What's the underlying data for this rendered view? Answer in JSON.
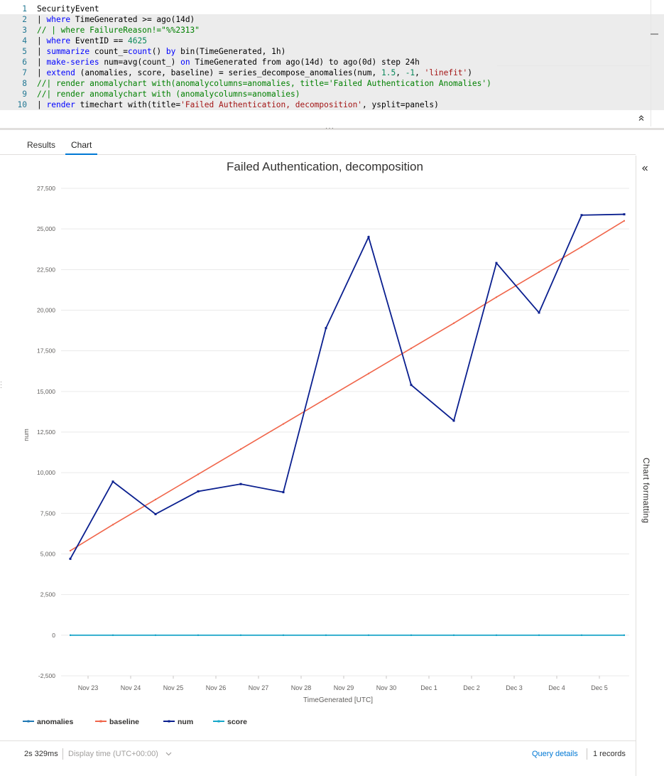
{
  "editor": {
    "lines": [
      {
        "num": "1",
        "tokens": [
          {
            "t": "SecurityEvent",
            "c": "plain"
          }
        ]
      },
      {
        "num": "2",
        "tokens": [
          {
            "t": "| ",
            "c": "plain"
          },
          {
            "t": "where",
            "c": "kw"
          },
          {
            "t": " TimeGenerated >= ago(14d)",
            "c": "plain"
          }
        ]
      },
      {
        "num": "3",
        "tokens": [
          {
            "t": "// | where FailureReason!=\"%%2313\"",
            "c": "cmt"
          }
        ]
      },
      {
        "num": "4",
        "tokens": [
          {
            "t": "| ",
            "c": "plain"
          },
          {
            "t": "where",
            "c": "kw"
          },
          {
            "t": " EventID == ",
            "c": "plain"
          },
          {
            "t": "4625",
            "c": "num"
          }
        ]
      },
      {
        "num": "5",
        "tokens": [
          {
            "t": "| ",
            "c": "plain"
          },
          {
            "t": "summarize",
            "c": "kw"
          },
          {
            "t": " count_=",
            "c": "plain"
          },
          {
            "t": "count",
            "c": "kw"
          },
          {
            "t": "() ",
            "c": "plain"
          },
          {
            "t": "by",
            "c": "kw"
          },
          {
            "t": " bin(TimeGenerated, 1h)",
            "c": "plain"
          }
        ]
      },
      {
        "num": "6",
        "tokens": [
          {
            "t": "| ",
            "c": "plain"
          },
          {
            "t": "make-series",
            "c": "kw"
          },
          {
            "t": " num=avg(count_) ",
            "c": "plain"
          },
          {
            "t": "on",
            "c": "kw"
          },
          {
            "t": " TimeGenerated from ago(14d) to ago(0d) step 24h",
            "c": "plain"
          }
        ]
      },
      {
        "num": "7",
        "tokens": [
          {
            "t": "| ",
            "c": "plain"
          },
          {
            "t": "extend",
            "c": "kw"
          },
          {
            "t": " (anomalies, score, baseline) = series_decompose_anomalies(num, ",
            "c": "plain"
          },
          {
            "t": "1.5",
            "c": "num"
          },
          {
            "t": ", ",
            "c": "plain"
          },
          {
            "t": "-1",
            "c": "num"
          },
          {
            "t": ", ",
            "c": "plain"
          },
          {
            "t": "'linefit'",
            "c": "str"
          },
          {
            "t": ")",
            "c": "plain"
          }
        ]
      },
      {
        "num": "8",
        "tokens": [
          {
            "t": "//| render anomalychart with(anomalycolumns=anomalies, title='Failed Authentication Anomalies')",
            "c": "cmt"
          }
        ]
      },
      {
        "num": "9",
        "tokens": [
          {
            "t": "//| render anomalychart with (anomalycolumns=anomalies)",
            "c": "cmt"
          }
        ]
      },
      {
        "num": "10",
        "tokens": [
          {
            "t": "| ",
            "c": "plain"
          },
          {
            "t": "render",
            "c": "kw"
          },
          {
            "t": " timechart with(title=",
            "c": "plain"
          },
          {
            "t": "'Failed Authentication, decomposition'",
            "c": "str"
          },
          {
            "t": ", ysplit=panels)",
            "c": "plain"
          }
        ]
      }
    ],
    "collapse_icon": "double-chevron-up-icon"
  },
  "tabs": [
    {
      "label": "Results",
      "active": false
    },
    {
      "label": "Chart",
      "active": true
    }
  ],
  "side_pane": {
    "label": "Chart formatting",
    "expand_icon": "double-chevron-left-icon"
  },
  "chart_data": {
    "type": "line",
    "title": "Failed Authentication, decomposition",
    "xlabel": "TimeGenerated [UTC]",
    "ylabel": "num",
    "ylim": [
      -2500,
      27500
    ],
    "yticks": [
      -2500,
      0,
      2500,
      5000,
      7500,
      10000,
      12500,
      15000,
      17500,
      20000,
      22500,
      25000,
      27500
    ],
    "ytick_labels": [
      "-2,500",
      "0",
      "2,500",
      "5,000",
      "7,500",
      "10,000",
      "12,500",
      "15,000",
      "17,500",
      "20,000",
      "22,500",
      "25,000",
      "27,500"
    ],
    "x_tick_labels": [
      "Nov 23",
      "Nov 24",
      "Nov 25",
      "Nov 26",
      "Nov 27",
      "Nov 28",
      "Nov 29",
      "Nov 30",
      "Dec 1",
      "Dec 2",
      "Dec 3",
      "Dec 4",
      "Dec 5"
    ],
    "x_tick_dates": [
      "2021-11-23",
      "2021-11-24",
      "2021-11-25",
      "2021-11-26",
      "2021-11-27",
      "2021-11-28",
      "2021-11-29",
      "2021-11-30",
      "2021-12-01",
      "2021-12-02",
      "2021-12-03",
      "2021-12-04",
      "2021-12-05"
    ],
    "x": [
      "2021-11-22T14:00",
      "2021-11-23T14:00",
      "2021-11-24T14:00",
      "2021-11-25T14:00",
      "2021-11-26T14:00",
      "2021-11-27T14:00",
      "2021-11-28T14:00",
      "2021-11-29T14:00",
      "2021-11-30T14:00",
      "2021-12-01T14:00",
      "2021-12-02T14:00",
      "2021-12-03T14:00",
      "2021-12-04T14:00",
      "2021-12-05T14:00"
    ],
    "grid": true,
    "legend_position": "bottom-left",
    "series": [
      {
        "name": "anomalies",
        "color": "#1f78b4",
        "values": [
          0,
          0,
          0,
          0,
          0,
          0,
          0,
          0,
          0,
          0,
          0,
          0,
          0,
          0
        ]
      },
      {
        "name": "baseline",
        "color": "#f0654a",
        "values": [
          5200,
          6800,
          8350,
          9900,
          11450,
          13000,
          14550,
          16100,
          17650,
          19200,
          20800,
          22350,
          23900,
          25500
        ]
      },
      {
        "name": "num",
        "color": "#0a1f8f",
        "values": [
          4700,
          9450,
          7450,
          8850,
          9300,
          8800,
          18900,
          24500,
          15400,
          13200,
          22900,
          19850,
          25850,
          25900
        ]
      },
      {
        "name": "score",
        "color": "#16a7c9",
        "values": [
          0,
          0,
          0,
          0,
          0,
          0,
          0,
          0,
          0,
          0,
          0,
          0,
          0,
          0
        ]
      }
    ]
  },
  "footer": {
    "duration": "2s 329ms",
    "display_time": "Display time (UTC+00:00)",
    "dropdown_icon": "chevron-down-icon",
    "query_details": "Query details",
    "records": "1 records"
  }
}
